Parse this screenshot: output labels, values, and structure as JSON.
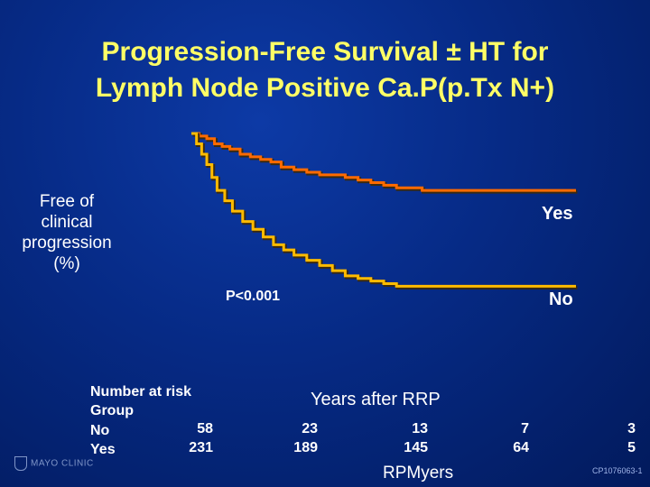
{
  "chart_data": {
    "type": "line",
    "title": "Progression-Free Survival ± HT for Lymph Node Positive Ca.P(p.Tx N+)",
    "title_lines": [
      "Progression-Free Survival ± HT for",
      "Lymph Node Positive Ca.P(p.Tx N+)"
    ],
    "ylabel_lines": [
      "Free of",
      "clinical",
      "progression",
      "(%)"
    ],
    "xlabel": "Years after RRP",
    "xlim": [
      0,
      15
    ],
    "ylim": [
      0,
      100
    ],
    "pvalue": "P<0.001",
    "series": [
      {
        "name": "Yes",
        "color": "#ff6a00",
        "x": [
          0,
          0.3,
          0.6,
          0.9,
          1.2,
          1.5,
          1.9,
          2.3,
          2.7,
          3.1,
          3.5,
          4.0,
          4.5,
          5.0,
          5.5,
          6.0,
          6.5,
          7.0,
          7.5,
          8.0,
          8.5,
          9.0,
          10.0,
          11.0,
          12.0,
          13.0,
          14.0,
          15.0
        ],
        "y": [
          100,
          99,
          98,
          96,
          95,
          94,
          92,
          91,
          90,
          89,
          87,
          86,
          85,
          84,
          84,
          83,
          82,
          81,
          80,
          79,
          79,
          78,
          78,
          78,
          78,
          78,
          78,
          78
        ]
      },
      {
        "name": "No",
        "color": "#ffbb00",
        "x": [
          0,
          0.2,
          0.4,
          0.6,
          0.8,
          1.0,
          1.3,
          1.6,
          2.0,
          2.4,
          2.8,
          3.2,
          3.6,
          4.0,
          4.5,
          5.0,
          5.5,
          6.0,
          6.5,
          7.0,
          7.5,
          8.0,
          9.0,
          10.0,
          11.0,
          12.0,
          13.0,
          14.0,
          15.0
        ],
        "y": [
          100,
          96,
          92,
          88,
          83,
          78,
          74,
          70,
          66,
          63,
          60,
          57,
          55,
          53,
          51,
          49,
          47,
          45,
          44,
          43,
          42,
          41,
          41,
          41,
          41,
          41,
          41,
          41,
          41
        ]
      }
    ],
    "legend_labels": {
      "yes": "Yes",
      "no": "No"
    }
  },
  "risk_table": {
    "header_1": "Number at risk",
    "header_2": "Group",
    "row_no_label": "No",
    "row_yes_label": "Yes",
    "columns": [
      {
        "no": "58",
        "yes": "231"
      },
      {
        "no": "23",
        "yes": "189"
      },
      {
        "no": "13",
        "yes": "145"
      },
      {
        "no": "7",
        "yes": "64"
      },
      {
        "no": "3",
        "yes": "5"
      }
    ]
  },
  "footer": {
    "logo_text": "MAYO CLINIC",
    "slide_code": "CP1076063-1",
    "credit": "RPMyers"
  }
}
